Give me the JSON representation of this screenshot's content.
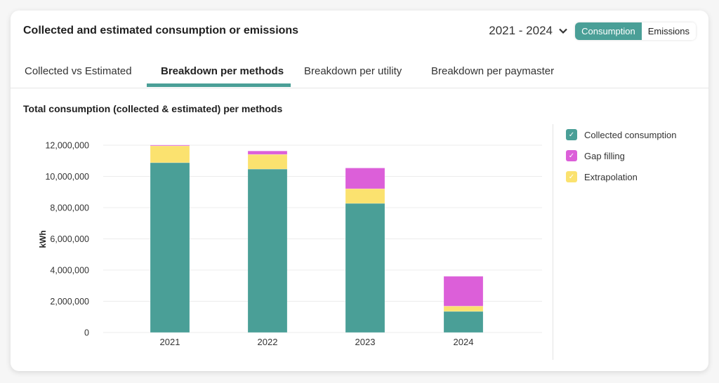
{
  "header": {
    "title": "Collected and estimated consumption or emissions",
    "date_range": "2021 - 2024",
    "toggle": {
      "options": [
        "Consumption",
        "Emissions"
      ],
      "selected": "Consumption"
    }
  },
  "tabs": [
    {
      "label": "Collected vs Estimated",
      "active": false
    },
    {
      "label": "Breakdown per methods",
      "active": true
    },
    {
      "label": "Breakdown per utility",
      "active": false
    },
    {
      "label": "Breakdown per paymaster",
      "active": false
    }
  ],
  "colors": {
    "accent": "#4a9f97",
    "collected": "#4a9f97",
    "gap": "#dc5fd9",
    "extrapolation": "#fbe26f"
  },
  "chart_data": {
    "type": "bar",
    "stacked": true,
    "title": "Total consumption (collected & estimated) per methods",
    "xlabel": "",
    "ylabel": "kWh",
    "ylim": [
      0,
      12000000
    ],
    "yticks": [
      0,
      2000000,
      4000000,
      6000000,
      8000000,
      10000000,
      12000000
    ],
    "ytick_labels": [
      "0",
      "2,000,000",
      "4,000,000",
      "6,000,000",
      "8,000,000",
      "10,000,000",
      "12,000,000"
    ],
    "grid": true,
    "legend_position": "right",
    "categories": [
      "2021",
      "2022",
      "2023",
      "2024"
    ],
    "series": [
      {
        "name": "Collected consumption",
        "color": "#4a9f97",
        "values": [
          10880000,
          10470000,
          8270000,
          1350000
        ]
      },
      {
        "name": "Extrapolation",
        "color": "#fbe26f",
        "values": [
          1080000,
          940000,
          940000,
          340000
        ]
      },
      {
        "name": "Gap filling",
        "color": "#dc5fd9",
        "values": [
          50000,
          220000,
          1330000,
          1910000
        ]
      }
    ],
    "legend": [
      {
        "name": "Collected consumption",
        "color": "#4a9f97"
      },
      {
        "name": "Gap filling",
        "color": "#dc5fd9"
      },
      {
        "name": "Extrapolation",
        "color": "#fbe26f"
      }
    ]
  }
}
